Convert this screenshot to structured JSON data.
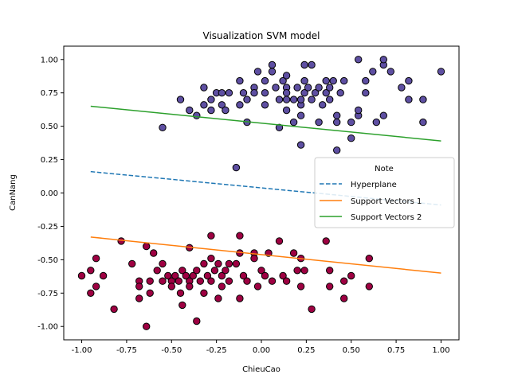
{
  "chart_data": {
    "type": "scatter",
    "title": "Visualization SVM model",
    "xlabel": "ChieuCao",
    "ylabel": "CanNang",
    "xlim": [
      -1.1,
      1.1
    ],
    "ylim": [
      -1.1,
      1.1
    ],
    "x_ticks": [
      "-1.00",
      "-0.75",
      "-0.50",
      "-0.25",
      "0.00",
      "0.25",
      "0.50",
      "0.75",
      "1.00"
    ],
    "y_ticks": [
      "-1.00",
      "-0.75",
      "-0.50",
      "-0.25",
      "0.00",
      "0.25",
      "0.50",
      "0.75",
      "1.00"
    ],
    "grid": false,
    "legend": {
      "title": "Note",
      "placement": "center-right",
      "entries": [
        "Hyperplane",
        "Support Vectors 1",
        "Support Vectors 2"
      ]
    },
    "lines": [
      {
        "name": "Hyperplane",
        "color": "#1f77b4",
        "style": "dashed",
        "x": [
          -0.95,
          1.0
        ],
        "y": [
          0.16,
          -0.09
        ]
      },
      {
        "name": "Support Vectors 1",
        "color": "#ff7f0e",
        "style": "solid",
        "x": [
          -0.95,
          1.0
        ],
        "y": [
          -0.33,
          -0.6
        ]
      },
      {
        "name": "Support Vectors 2",
        "color": "#2ca02c",
        "style": "solid",
        "x": [
          -0.95,
          1.0
        ],
        "y": [
          0.65,
          0.39
        ]
      }
    ],
    "scatter_series": [
      {
        "color": "#5e4fa2",
        "points": [
          [
            -0.55,
            0.49
          ],
          [
            -0.45,
            0.7
          ],
          [
            -0.4,
            0.62
          ],
          [
            -0.36,
            0.58
          ],
          [
            -0.32,
            0.79
          ],
          [
            -0.32,
            0.66
          ],
          [
            -0.28,
            0.62
          ],
          [
            -0.28,
            0.7
          ],
          [
            -0.25,
            0.75
          ],
          [
            -0.22,
            0.66
          ],
          [
            -0.22,
            0.75
          ],
          [
            -0.2,
            0.62
          ],
          [
            -0.18,
            0.75
          ],
          [
            -0.14,
            0.19
          ],
          [
            -0.12,
            0.84
          ],
          [
            -0.12,
            0.66
          ],
          [
            -0.1,
            0.75
          ],
          [
            -0.08,
            0.53
          ],
          [
            -0.08,
            0.7
          ],
          [
            -0.04,
            0.79
          ],
          [
            -0.04,
            0.75
          ],
          [
            -0.02,
            0.91
          ],
          [
            0.02,
            0.75
          ],
          [
            0.02,
            0.66
          ],
          [
            0.02,
            0.84
          ],
          [
            0.06,
            0.96
          ],
          [
            0.06,
            0.91
          ],
          [
            0.08,
            0.79
          ],
          [
            0.1,
            0.7
          ],
          [
            0.1,
            0.49
          ],
          [
            0.12,
            0.84
          ],
          [
            0.14,
            0.79
          ],
          [
            0.14,
            0.75
          ],
          [
            0.14,
            0.7
          ],
          [
            0.14,
            0.62
          ],
          [
            0.14,
            0.88
          ],
          [
            0.18,
            0.53
          ],
          [
            0.18,
            0.7
          ],
          [
            0.2,
            0.79
          ],
          [
            0.22,
            0.58
          ],
          [
            0.22,
            0.66
          ],
          [
            0.22,
            0.7
          ],
          [
            0.22,
            0.36
          ],
          [
            0.24,
            0.96
          ],
          [
            0.24,
            0.75
          ],
          [
            0.24,
            0.84
          ],
          [
            0.26,
            0.79
          ],
          [
            0.28,
            0.96
          ],
          [
            0.28,
            0.7
          ],
          [
            0.3,
            0.75
          ],
          [
            0.32,
            0.53
          ],
          [
            0.32,
            0.79
          ],
          [
            0.34,
            0.66
          ],
          [
            0.36,
            0.84
          ],
          [
            0.36,
            0.75
          ],
          [
            0.38,
            0.79
          ],
          [
            0.38,
            0.7
          ],
          [
            0.4,
            0.84
          ],
          [
            0.42,
            0.58
          ],
          [
            0.42,
            0.32
          ],
          [
            0.42,
            0.53
          ],
          [
            0.44,
            0.75
          ],
          [
            0.46,
            0.84
          ],
          [
            0.5,
            0.41
          ],
          [
            0.5,
            0.53
          ],
          [
            0.54,
            1.0
          ],
          [
            0.54,
            0.58
          ],
          [
            0.54,
            0.62
          ],
          [
            0.58,
            0.84
          ],
          [
            0.58,
            0.75
          ],
          [
            0.62,
            0.91
          ],
          [
            0.64,
            0.53
          ],
          [
            0.68,
            0.96
          ],
          [
            0.68,
            1.0
          ],
          [
            0.68,
            0.58
          ],
          [
            0.72,
            0.91
          ],
          [
            0.78,
            0.79
          ],
          [
            0.82,
            0.84
          ],
          [
            0.82,
            0.7
          ],
          [
            0.9,
            0.53
          ],
          [
            0.9,
            0.7
          ],
          [
            1.0,
            0.91
          ]
        ]
      },
      {
        "color": "#9e0142",
        "points": [
          [
            -1.0,
            -0.62
          ],
          [
            -0.95,
            -0.75
          ],
          [
            -0.95,
            -0.58
          ],
          [
            -0.92,
            -0.49
          ],
          [
            -0.92,
            -0.7
          ],
          [
            -0.88,
            -0.62
          ],
          [
            -0.82,
            -0.87
          ],
          [
            -0.78,
            -0.36
          ],
          [
            -0.72,
            -0.53
          ],
          [
            -0.68,
            -0.66
          ],
          [
            -0.68,
            -0.7
          ],
          [
            -0.68,
            -0.79
          ],
          [
            -0.64,
            -1.0
          ],
          [
            -0.64,
            -0.4
          ],
          [
            -0.62,
            -0.66
          ],
          [
            -0.62,
            -0.75
          ],
          [
            -0.6,
            -0.45
          ],
          [
            -0.58,
            -0.58
          ],
          [
            -0.55,
            -0.53
          ],
          [
            -0.55,
            -0.66
          ],
          [
            -0.52,
            -0.62
          ],
          [
            -0.5,
            -0.66
          ],
          [
            -0.5,
            -0.7
          ],
          [
            -0.48,
            -0.62
          ],
          [
            -0.46,
            -0.66
          ],
          [
            -0.45,
            -0.75
          ],
          [
            -0.44,
            -0.58
          ],
          [
            -0.44,
            -0.84
          ],
          [
            -0.42,
            -0.62
          ],
          [
            -0.4,
            -0.41
          ],
          [
            -0.4,
            -0.66
          ],
          [
            -0.4,
            -0.7
          ],
          [
            -0.38,
            -0.62
          ],
          [
            -0.36,
            -0.96
          ],
          [
            -0.36,
            -0.58
          ],
          [
            -0.34,
            -0.66
          ],
          [
            -0.32,
            -0.75
          ],
          [
            -0.32,
            -0.53
          ],
          [
            -0.3,
            -0.62
          ],
          [
            -0.28,
            -0.32
          ],
          [
            -0.28,
            -0.49
          ],
          [
            -0.28,
            -0.66
          ],
          [
            -0.26,
            -0.58
          ],
          [
            -0.24,
            -0.79
          ],
          [
            -0.24,
            -0.53
          ],
          [
            -0.22,
            -0.62
          ],
          [
            -0.22,
            -0.7
          ],
          [
            -0.2,
            -0.58
          ],
          [
            -0.18,
            -0.53
          ],
          [
            -0.18,
            -0.66
          ],
          [
            -0.14,
            -0.53
          ],
          [
            -0.12,
            -0.32
          ],
          [
            -0.12,
            -0.45
          ],
          [
            -0.12,
            -0.79
          ],
          [
            -0.1,
            -0.62
          ],
          [
            -0.08,
            -0.66
          ],
          [
            -0.04,
            -0.45
          ],
          [
            -0.04,
            -0.49
          ],
          [
            -0.02,
            -0.7
          ],
          [
            0.0,
            -0.58
          ],
          [
            0.02,
            -0.62
          ],
          [
            0.04,
            -0.45
          ],
          [
            0.06,
            -0.66
          ],
          [
            0.1,
            -0.36
          ],
          [
            0.12,
            -0.62
          ],
          [
            0.14,
            -0.66
          ],
          [
            0.18,
            -0.45
          ],
          [
            0.2,
            -0.58
          ],
          [
            0.22,
            -0.49
          ],
          [
            0.22,
            -0.7
          ],
          [
            0.24,
            -0.58
          ],
          [
            0.28,
            -0.87
          ],
          [
            0.36,
            -0.36
          ],
          [
            0.38,
            -0.58
          ],
          [
            0.38,
            -0.7
          ],
          [
            0.46,
            -0.66
          ],
          [
            0.46,
            -0.79
          ],
          [
            0.5,
            -0.62
          ],
          [
            0.6,
            -0.49
          ],
          [
            0.6,
            -0.7
          ]
        ]
      }
    ]
  }
}
